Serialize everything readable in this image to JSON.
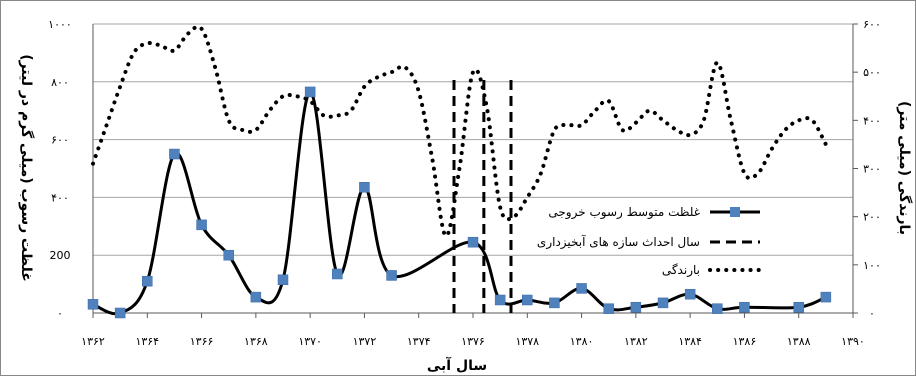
{
  "chart_data": {
    "type": "line",
    "title": "",
    "xlabel": "سال آبی",
    "ylabel_left": "غلظت رسوب (میلی گرم در لیتر)",
    "ylabel_right": "بارندگی (میلی متر)",
    "x_ticks": [
      {
        "value": 1362,
        "label": "۱۳۶۲"
      },
      {
        "value": 1364,
        "label": "۱۳۶۴"
      },
      {
        "value": 1366,
        "label": "۱۳۶۶"
      },
      {
        "value": 1368,
        "label": "۱۳۶۸"
      },
      {
        "value": 1370,
        "label": "۱۳۷۰"
      },
      {
        "value": 1372,
        "label": "۱۳۷۲"
      },
      {
        "value": 1374,
        "label": "۱۳۷۴"
      },
      {
        "value": 1376,
        "label": "۱۳۷۶"
      },
      {
        "value": 1378,
        "label": "۱۳۷۸"
      },
      {
        "value": 1380,
        "label": "۱۳۸۰"
      },
      {
        "value": 1382,
        "label": "۱۳۸۲"
      },
      {
        "value": 1384,
        "label": "۱۳۸۴"
      },
      {
        "value": 1386,
        "label": "۱۳۸۶"
      },
      {
        "value": 1388,
        "label": "۱۳۸۸"
      },
      {
        "value": 1390,
        "label": "۱۳۹۰"
      }
    ],
    "xlim": [
      1362,
      1390
    ],
    "y_left_ticks": [
      {
        "value": 0,
        "label": "۰"
      },
      {
        "value": 200,
        "label": "200"
      },
      {
        "value": 400,
        "label": "۴۰۰"
      },
      {
        "value": 600,
        "label": "۶۰۰"
      },
      {
        "value": 800,
        "label": "۸۰۰"
      },
      {
        "value": 1000,
        "label": "۱۰۰۰"
      }
    ],
    "ylim_left": [
      0,
      1000
    ],
    "y_right_ticks": [
      {
        "value": 0,
        "label": "۰"
      },
      {
        "value": 100,
        "label": "۱۰۰"
      },
      {
        "value": 200,
        "label": "۲۰۰"
      },
      {
        "value": 300,
        "label": "۳۰۰"
      },
      {
        "value": 400,
        "label": "۴۰۰"
      },
      {
        "value": 500,
        "label": "۵۰۰"
      },
      {
        "value": 600,
        "label": "۶۰۰"
      }
    ],
    "ylim_right": [
      0,
      600
    ],
    "series": [
      {
        "name": "غلظت متوسط رسوب خروجی",
        "axis": "left",
        "style": "solid-line-square-markers",
        "color": "#000000",
        "marker_color": "#4f81bd",
        "x": [
          1362,
          1363,
          1364,
          1365,
          1366,
          1367,
          1368,
          1369,
          1370,
          1371,
          1372,
          1373,
          1376,
          1377,
          1378,
          1379,
          1380,
          1381,
          1382,
          1383,
          1384,
          1385,
          1386,
          1388,
          1389
        ],
        "y": [
          30,
          0,
          110,
          550,
          305,
          200,
          55,
          115,
          765,
          135,
          435,
          130,
          245,
          45,
          45,
          35,
          85,
          15,
          20,
          35,
          65,
          15,
          20,
          20,
          55
        ]
      },
      {
        "name": "بارندگی",
        "axis": "right",
        "style": "dotted",
        "color": "#000000",
        "x": [
          1362,
          1362.5,
          1363,
          1363.5,
          1364,
          1364.5,
          1365,
          1365.5,
          1366,
          1366.5,
          1367,
          1367.5,
          1368,
          1368.5,
          1369,
          1369.5,
          1370,
          1370.5,
          1371,
          1371.5,
          1372,
          1372.5,
          1373,
          1373.5,
          1374,
          1374.5,
          1375,
          1375.5,
          1376,
          1376.5,
          1377,
          1377.5,
          1378,
          1378.5,
          1379,
          1379.5,
          1380,
          1380.5,
          1381,
          1381.5,
          1382,
          1382.5,
          1383,
          1383.5,
          1384,
          1384.5,
          1385,
          1385.5,
          1386,
          1386.5,
          1387,
          1387.5,
          1388,
          1388.5,
          1389
        ],
        "y": [
          310,
          390,
          470,
          540,
          560,
          555,
          545,
          580,
          590,
          510,
          400,
          380,
          380,
          420,
          450,
          450,
          440,
          410,
          410,
          420,
          470,
          490,
          500,
          510,
          460,
          320,
          160,
          300,
          500,
          430,
          220,
          200,
          240,
          290,
          380,
          390,
          390,
          420,
          440,
          380,
          395,
          420,
          400,
          380,
          370,
          400,
          520,
          400,
          290,
          290,
          340,
          380,
          400,
          400,
          350
        ]
      }
    ],
    "vertical_markers": {
      "name": "سال احداث سازه های آبخیزداری",
      "style": "dashed",
      "x": [
        1375.3,
        1376.4,
        1377.4
      ]
    },
    "legend": {
      "position": "right-middle",
      "entries": [
        {
          "label": "غلظت متوسط رسوب خروجی",
          "style": "solid-line-square-markers"
        },
        {
          "label": "سال احداث سازه های آبخیزداری",
          "style": "dashed"
        },
        {
          "label": "بارندگی",
          "style": "dotted"
        }
      ]
    },
    "grid": {
      "horizontal": true,
      "vertical": false
    }
  }
}
